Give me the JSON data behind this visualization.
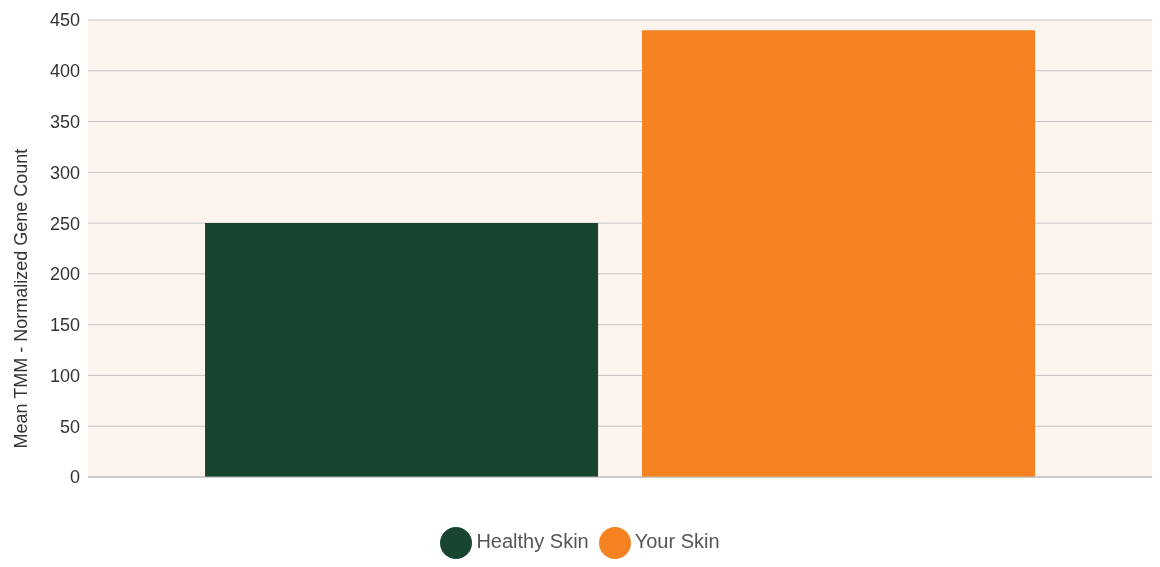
{
  "chart_data": {
    "type": "bar",
    "ylabel": "Mean TMM - Normalized Gene Count",
    "categories": [
      null
    ],
    "series": [
      {
        "name": "Healthy Skin",
        "color": "#17452f",
        "values": [
          250
        ]
      },
      {
        "name": "Your Skin",
        "color": "#f58220",
        "values": [
          440
        ]
      }
    ],
    "ylim": [
      0,
      450
    ],
    "yticks": [
      0,
      50,
      100,
      150,
      200,
      250,
      300,
      350,
      400,
      450
    ],
    "grid": "y",
    "legend": "bottom"
  }
}
